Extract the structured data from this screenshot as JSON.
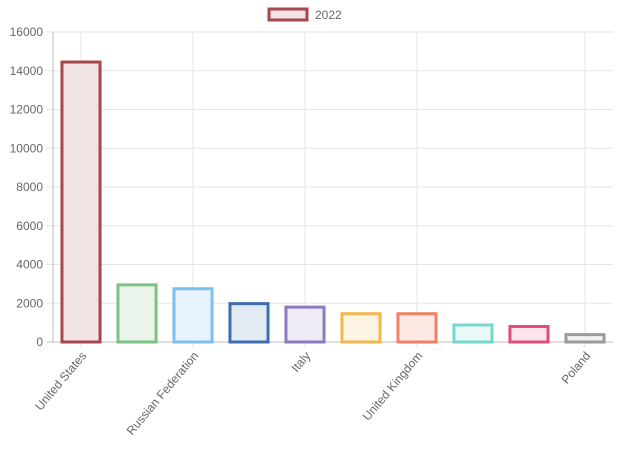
{
  "chart_data": {
    "type": "bar",
    "categories": [
      "United States",
      "",
      "Russian Federation",
      "",
      "Italy",
      "",
      "United Kingdom",
      "",
      "",
      "Poland"
    ],
    "series": [
      {
        "name": "2022",
        "values": [
          14450,
          2950,
          2750,
          1980,
          1800,
          1460,
          1460,
          880,
          800,
          380
        ]
      }
    ],
    "legend": "top",
    "grid": true,
    "ylim": [
      0,
      16000
    ],
    "yticks": [
      "0",
      "2000",
      "4000",
      "6000",
      "8000",
      "10000",
      "12000",
      "14000",
      "16000"
    ],
    "colors": {
      "strokes": [
        "#a8464e",
        "#7dc383",
        "#7dbfee",
        "#3d6fad",
        "#8e7ac0",
        "#f2b64f",
        "#ef8266",
        "#76d7cd",
        "#df4c7f",
        "#9a9a9a"
      ],
      "fills": [
        "#f1e2e3",
        "#ecf5ec",
        "#e6f3fc",
        "#e2eaf4",
        "#eeebf5",
        "#fdf4e4",
        "#fde9e4",
        "#e9f9f7",
        "#fbe5ec",
        "#f1f1f1"
      ]
    }
  }
}
